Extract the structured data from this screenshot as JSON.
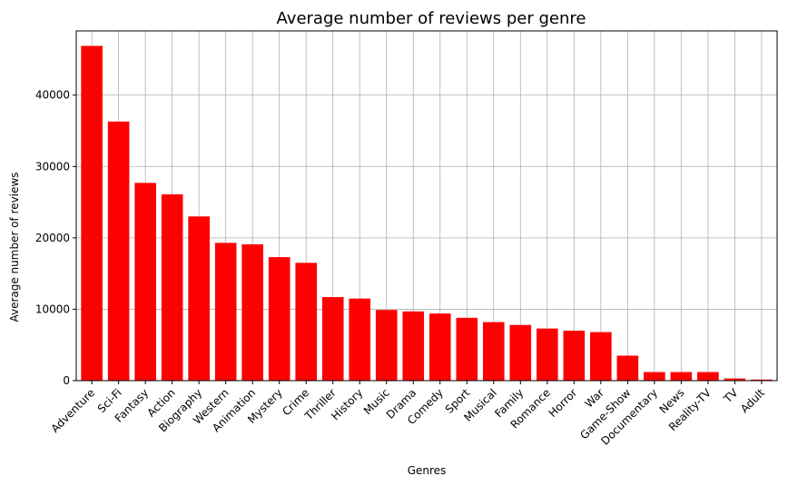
{
  "chart_data": {
    "type": "bar",
    "title": "Average number of reviews per genre",
    "xlabel": "Genres",
    "ylabel": "Average number of reviews",
    "categories": [
      "Adventure",
      "Sci-Fi",
      "Fantasy",
      "Action",
      "Biography",
      "Western",
      "Animation",
      "Mystery",
      "Crime",
      "Thriller",
      "History",
      "Music",
      "Drama",
      "Comedy",
      "Sport",
      "Musical",
      "Family",
      "Romance",
      "Horror",
      "War",
      "Game-Show",
      "Documentary",
      "News",
      "Reality-TV",
      "TV",
      "Adult"
    ],
    "values": [
      46900,
      36300,
      27700,
      26100,
      23000,
      19300,
      19100,
      17300,
      16500,
      11700,
      11500,
      9900,
      9700,
      9400,
      8800,
      8200,
      7800,
      7300,
      7000,
      6800,
      3500,
      1200,
      1200,
      1200,
      300,
      150
    ],
    "yticks": [
      0,
      10000,
      20000,
      30000,
      40000
    ],
    "ylim": [
      0,
      49000
    ],
    "grid": true,
    "bar_color": "#ff0000"
  }
}
